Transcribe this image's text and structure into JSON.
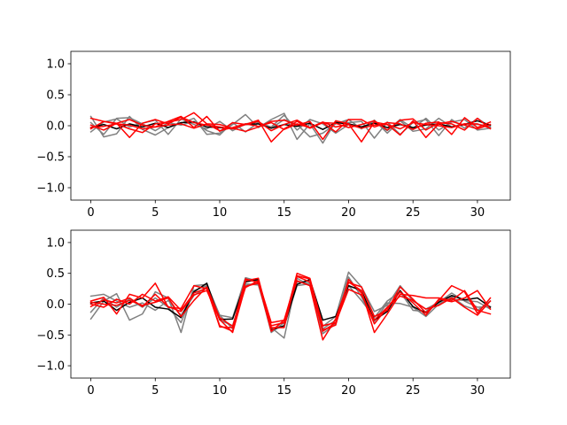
{
  "chart_data": [
    {
      "type": "line",
      "title": "",
      "xlabel": "",
      "ylabel": "",
      "xlim": [
        -1.55,
        32.55
      ],
      "ylim": [
        -1.2,
        1.2
      ],
      "xticks": [
        0,
        5,
        10,
        15,
        20,
        25,
        30
      ],
      "yticks": [
        -1.0,
        -0.5,
        0.0,
        0.5,
        1.0
      ],
      "xtick_labels": [
        "0",
        "5",
        "10",
        "15",
        "20",
        "25",
        "30"
      ],
      "ytick_labels": [
        "−1.0",
        "−0.5",
        "0.0",
        "0.5",
        "1.0"
      ],
      "grid": false,
      "x": [
        0,
        1,
        2,
        3,
        4,
        5,
        6,
        7,
        8,
        9,
        10,
        11,
        12,
        13,
        14,
        15,
        16,
        17,
        18,
        19,
        20,
        21,
        22,
        23,
        24,
        25,
        26,
        27,
        28,
        29,
        30,
        31
      ],
      "series": [
        {
          "color": "#808080",
          "values": [
            0.15,
            -0.18,
            -0.13,
            0.15,
            -0.06,
            -0.15,
            -0.03,
            0.04,
            0.12,
            -0.14,
            -0.12,
            0.02,
            0.18,
            -0.03,
            0.1,
            0.2,
            -0.22,
            0.03,
            -0.28,
            0.07,
            0.05,
            0.07,
            -0.2,
            0.06,
            -0.14,
            0.05,
            0.1,
            -0.16,
            0.1,
            -0.04,
            0.12,
            -0.02
          ]
        },
        {
          "color": "#808080",
          "values": [
            -0.1,
            0.06,
            0.11,
            -0.02,
            0.04,
            0.09,
            -0.14,
            0.11,
            0.02,
            -0.05,
            0.07,
            -0.08,
            0.03,
            0.06,
            -0.04,
            0.1,
            0.02,
            -0.18,
            -0.12,
            0.03,
            0.1,
            -0.05,
            0.09,
            -0.12,
            0.08,
            -0.09,
            -0.05,
            0.12,
            -0.02,
            0.03,
            0.02,
            0.0
          ]
        },
        {
          "color": "#808080",
          "values": [
            0.05,
            -0.14,
            0.12,
            0.13,
            0.03,
            -0.08,
            0.05,
            0.01,
            0.07,
            -0.08,
            -0.15,
            0.05,
            -0.1,
            0.05,
            -0.02,
            0.17,
            -0.07,
            0.1,
            0.03,
            -0.12,
            0.02,
            -0.02,
            0.06,
            -0.08,
            0.1,
            -0.04,
            0.12,
            -0.07,
            0.06,
            0.1,
            -0.07,
            -0.04
          ]
        },
        {
          "color": "#000000",
          "values": [
            -0.03,
            0.02,
            -0.05,
            0.03,
            -0.02,
            0.04,
            -0.03,
            0.05,
            0.06,
            -0.02,
            -0.03,
            -0.04,
            0.02,
            0.03,
            -0.04,
            0.02,
            -0.01,
            0.04,
            -0.06,
            0.05,
            0.03,
            -0.02,
            0.04,
            -0.03,
            0.02,
            -0.03,
            0.01,
            0.03,
            -0.02,
            0.02,
            0.08,
            0.01
          ]
        },
        {
          "color": "#ff0000",
          "values": [
            -0.05,
            0.07,
            0.04,
            -0.19,
            0.04,
            0.1,
            0.03,
            0.14,
            0.05,
            0.01,
            -0.02,
            -0.05,
            0.02,
            0.07,
            -0.08,
            0.02,
            0.09,
            -0.03,
            0.05,
            -0.1,
            0.1,
            0.1,
            -0.02,
            0.05,
            0.03,
            -0.06,
            0.04,
            0.06,
            -0.14,
            0.13,
            -0.03,
            0.06
          ]
        },
        {
          "color": "#ff0000",
          "values": [
            0.12,
            0.07,
            0.03,
            -0.05,
            -0.11,
            0.03,
            0.06,
            0.1,
            0.21,
            0.03,
            0.02,
            -0.04,
            -0.09,
            -0.02,
            0.07,
            0.09,
            0.01,
            0.07,
            -0.22,
            0.08,
            0.03,
            -0.26,
            0.06,
            0.02,
            -0.15,
            0.08,
            -0.19,
            0.03,
            0.07,
            0.01,
            -0.05,
            0.02
          ]
        },
        {
          "color": "#ff0000",
          "values": [
            0.01,
            -0.07,
            0.04,
            0.1,
            0.01,
            -0.02,
            0.07,
            0.15,
            -0.03,
            0.15,
            -0.09,
            0.05,
            0.02,
            0.09,
            -0.26,
            -0.05,
            0.07,
            -0.04,
            0.05,
            0.04,
            -0.03,
            0.02,
            0.08,
            -0.07,
            0.09,
            0.11,
            -0.07,
            0.05,
            0.03,
            -0.07,
            0.12,
            -0.05
          ]
        },
        {
          "color": "#ff0000",
          "values": [
            -0.03,
            -0.01,
            0.03,
            0.01,
            -0.05,
            -0.02,
            0.01,
            0.03,
            -0.04,
            0.03,
            -0.08,
            -0.03,
            0.03,
            -0.01,
            0.05,
            -0.06,
            0.03,
            -0.03,
            0.06,
            -0.02,
            0.02,
            -0.04,
            0.01,
            0.02,
            -0.05,
            0.05,
            0.02,
            0.0,
            -0.03,
            0.03,
            0.03,
            -0.04
          ]
        }
      ]
    },
    {
      "type": "line",
      "title": "",
      "xlabel": "",
      "ylabel": "",
      "xlim": [
        -1.55,
        32.55
      ],
      "ylim": [
        -1.2,
        1.2
      ],
      "xticks": [
        0,
        5,
        10,
        15,
        20,
        25,
        30
      ],
      "yticks": [
        -1.0,
        -0.5,
        0.0,
        0.5,
        1.0
      ],
      "xtick_labels": [
        "0",
        "5",
        "10",
        "15",
        "20",
        "25",
        "30"
      ],
      "ytick_labels": [
        "−1.0",
        "−0.5",
        "0.0",
        "0.5",
        "1.0"
      ],
      "grid": false,
      "x": [
        0,
        1,
        2,
        3,
        4,
        5,
        6,
        7,
        8,
        9,
        10,
        11,
        12,
        13,
        14,
        15,
        16,
        17,
        18,
        19,
        20,
        21,
        22,
        23,
        24,
        25,
        26,
        27,
        28,
        29,
        30,
        31
      ],
      "series": [
        {
          "color": "#808080",
          "values": [
            -0.24,
            0.05,
            0.17,
            -0.26,
            -0.16,
            0.2,
            0.1,
            -0.46,
            0.3,
            0.32,
            -0.18,
            -0.22,
            0.43,
            0.37,
            -0.38,
            -0.55,
            0.42,
            0.3,
            -0.36,
            -0.2,
            0.52,
            0.28,
            -0.12,
            -0.02,
            0.3,
            0.05,
            -0.08,
            0.03,
            0.18,
            0.05,
            -0.05,
            -0.04
          ]
        },
        {
          "color": "#808080",
          "values": [
            0.13,
            0.16,
            0.05,
            -0.05,
            0.02,
            -0.1,
            0.06,
            -0.18,
            0.14,
            0.28,
            -0.26,
            -0.35,
            0.33,
            0.31,
            -0.42,
            -0.36,
            0.3,
            0.33,
            -0.4,
            -0.26,
            0.44,
            0.12,
            -0.28,
            0.02,
            0.01,
            -0.05,
            -0.2,
            0.0,
            0.12,
            -0.03,
            -0.1,
            0.05
          ]
        },
        {
          "color": "#808080",
          "values": [
            -0.13,
            0.1,
            -0.05,
            0.08,
            -0.05,
            0.1,
            -0.05,
            -0.3,
            0.22,
            0.3,
            -0.18,
            -0.4,
            0.3,
            0.34,
            -0.46,
            -0.3,
            0.36,
            0.35,
            -0.48,
            -0.32,
            0.3,
            0.06,
            -0.22,
            0.05,
            0.2,
            -0.1,
            -0.12,
            0.05,
            0.08,
            0.06,
            0.04,
            -0.08
          ]
        },
        {
          "color": "#000000",
          "values": [
            0.02,
            0.05,
            -0.1,
            0.03,
            0.1,
            -0.05,
            -0.08,
            -0.22,
            0.2,
            0.34,
            -0.25,
            -0.24,
            0.36,
            0.4,
            -0.42,
            -0.35,
            0.32,
            0.4,
            -0.26,
            -0.2,
            0.3,
            0.22,
            -0.26,
            -0.12,
            0.22,
            -0.04,
            -0.14,
            0.03,
            0.14,
            0.07,
            0.1,
            -0.05
          ]
        },
        {
          "color": "#ff0000",
          "values": [
            0.05,
            0.11,
            -0.16,
            0.16,
            0.1,
            0.34,
            -0.05,
            -0.07,
            0.3,
            0.25,
            -0.35,
            -0.44,
            0.38,
            0.42,
            -0.38,
            -0.38,
            0.46,
            0.41,
            -0.35,
            -0.3,
            0.35,
            0.28,
            -0.2,
            -0.1,
            0.28,
            0.08,
            -0.14,
            0.06,
            0.3,
            0.2,
            -0.15,
            0.1
          ]
        },
        {
          "color": "#ff0000",
          "values": [
            0.0,
            -0.05,
            0.08,
            0.0,
            0.16,
            0.05,
            0.12,
            -0.1,
            0.18,
            0.26,
            -0.37,
            -0.38,
            0.41,
            0.35,
            -0.44,
            -0.26,
            0.38,
            0.3,
            -0.58,
            -0.24,
            0.36,
            0.22,
            -0.46,
            -0.16,
            0.16,
            0.14,
            0.1,
            0.1,
            0.06,
            0.22,
            -0.1,
            -0.16
          ]
        },
        {
          "color": "#ff0000",
          "values": [
            -0.04,
            0.07,
            0.02,
            0.1,
            -0.04,
            0.16,
            -0.04,
            -0.12,
            0.15,
            0.22,
            -0.25,
            -0.46,
            0.29,
            0.34,
            -0.35,
            -0.3,
            0.5,
            0.42,
            -0.42,
            -0.34,
            0.4,
            0.18,
            -0.32,
            -0.06,
            0.2,
            0.02,
            -0.18,
            0.08,
            0.04,
            0.1,
            0.22,
            -0.08
          ]
        },
        {
          "color": "#ff0000",
          "values": [
            0.03,
            0.0,
            -0.02,
            0.06,
            -0.02,
            0.03,
            0.1,
            -0.2,
            0.06,
            0.28,
            -0.22,
            -0.36,
            0.27,
            0.38,
            -0.3,
            -0.26,
            0.45,
            0.36,
            -0.44,
            -0.3,
            0.24,
            0.15,
            -0.26,
            -0.05,
            0.13,
            0.06,
            -0.08,
            -0.02,
            0.1,
            -0.05,
            -0.18,
            0.05
          ]
        }
      ]
    }
  ]
}
